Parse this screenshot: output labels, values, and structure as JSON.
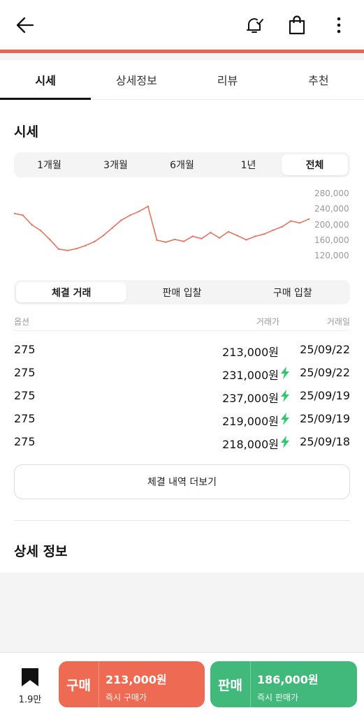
{
  "icons": {
    "back": "arrow-left-icon",
    "alarm": "bell-check-icon",
    "shop": "shopping-bag-icon",
    "more": "vertical-dots-icon",
    "bookmark": "bookmark-icon",
    "instant": "lightning-bolt-icon"
  },
  "colors": {
    "accent": "#ef6253",
    "chart_line": "#e8725f",
    "buy": "#ef6a52",
    "sell": "#41b97a",
    "bolt": "#2dc96c"
  },
  "tabs": [
    {
      "label": "시세",
      "active": true
    },
    {
      "label": "상세정보",
      "active": false
    },
    {
      "label": "리뷰",
      "active": false
    },
    {
      "label": "추천",
      "active": false
    }
  ],
  "price_section": {
    "title": "시세",
    "periods": [
      {
        "label": "1개월",
        "active": false
      },
      {
        "label": "3개월",
        "active": false
      },
      {
        "label": "6개월",
        "active": false
      },
      {
        "label": "1년",
        "active": false
      },
      {
        "label": "전체",
        "active": true
      }
    ]
  },
  "chart_data": {
    "type": "line",
    "title": "",
    "xlabel": "",
    "ylabel": "",
    "y_tick_labels": [
      "280,000",
      "240,000",
      "200,000",
      "160,000",
      "120,000"
    ],
    "ylim": [
      120000,
      280000
    ],
    "x": [
      0,
      3,
      6,
      9,
      12,
      15,
      18,
      21,
      24,
      27,
      30,
      33,
      36,
      39,
      42,
      45,
      48,
      51,
      54,
      57,
      60,
      63,
      66,
      69,
      72,
      75,
      78,
      81,
      84,
      87,
      90,
      93,
      96,
      99
    ],
    "values": [
      230000,
      225000,
      200000,
      185000,
      162000,
      137000,
      133000,
      138000,
      146000,
      156000,
      172000,
      192000,
      212000,
      225000,
      235000,
      248000,
      160000,
      155000,
      162000,
      157000,
      170000,
      164000,
      180000,
      166000,
      182000,
      172000,
      161000,
      170000,
      176000,
      186000,
      195000,
      210000,
      205000,
      215000
    ],
    "grid": false,
    "legend": "none"
  },
  "trade_tabs": [
    {
      "label": "체결 거래",
      "active": true
    },
    {
      "label": "판매 입찰",
      "active": false
    },
    {
      "label": "구매 입찰",
      "active": false
    }
  ],
  "table": {
    "headers": {
      "option": "옵션",
      "price": "거래가",
      "date": "거래일"
    },
    "rows": [
      {
        "option": "275",
        "price": "213,000원",
        "date": "25/09/22",
        "instant": false
      },
      {
        "option": "275",
        "price": "231,000원",
        "date": "25/09/22",
        "instant": true
      },
      {
        "option": "275",
        "price": "237,000원",
        "date": "25/09/19",
        "instant": true
      },
      {
        "option": "275",
        "price": "219,000원",
        "date": "25/09/19",
        "instant": true
      },
      {
        "option": "275",
        "price": "218,000원",
        "date": "25/09/18",
        "instant": true
      }
    ],
    "more_label": "체결 내역 더보기"
  },
  "detail_section": {
    "title": "상세 정보"
  },
  "bottom": {
    "bookmark_count": "1.9만",
    "buy": {
      "label": "구매",
      "price": "213,000원",
      "sub": "즉시 구매가"
    },
    "sell": {
      "label": "판매",
      "price": "186,000원",
      "sub": "즉시 판매가"
    }
  }
}
